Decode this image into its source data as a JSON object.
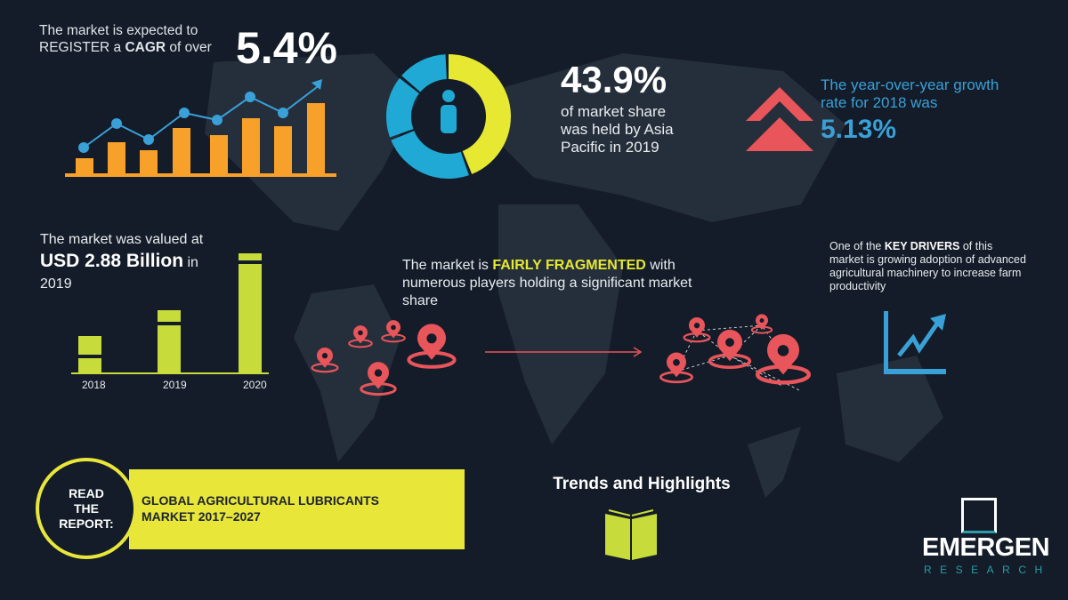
{
  "cagr": {
    "line1": "The market is expected to",
    "line2_pre": "REGISTER a ",
    "line2_bold": "CAGR",
    "line2_post": " of over",
    "value": "5.4%"
  },
  "asia": {
    "value": "43.9%",
    "line1": "of market share",
    "line2": "was held by Asia",
    "line3": "Pacific in 2019",
    "share_percent": 43.9
  },
  "yoy": {
    "line1": "The year-over-year growth",
    "line2": "rate for 2018 was",
    "value": "5.13%"
  },
  "valued": {
    "line1": "The market was valued at",
    "bold": "USD 2.88 Billion",
    "post": " in",
    "line3": "2019"
  },
  "value_bars": {
    "categories": [
      "2018",
      "2019",
      "2020"
    ]
  },
  "fragmented": {
    "pre": "The market is ",
    "bold": "FAIRLY FRAGMENTED",
    "post": " with",
    "line2": "numerous players holding a significant market",
    "line3": "share"
  },
  "drivers": {
    "pre": "One of the ",
    "bold": "KEY DRIVERS",
    "post": " of this",
    "line2": "market is growing adoption of advanced",
    "line3": "agricultural machinery to increase farm",
    "line4": "productivity"
  },
  "report": {
    "circle_l1": "READ",
    "circle_l2": "THE",
    "circle_l3": "REPORT:",
    "title_l1": "GLOBAL AGRICULTURAL LUBRICANTS",
    "title_l2": "MARKET 2017–2027"
  },
  "trends": {
    "label": "Trends and Highlights"
  },
  "logo": {
    "name": "EMERGEN",
    "sub": "RESEARCH"
  },
  "colors": {
    "bg": "#131c28",
    "orange": "#f7a12b",
    "blue": "#3aa0d8",
    "yellow": "#e6e832",
    "red": "#e8555a",
    "green": "#c7dc3b"
  }
}
